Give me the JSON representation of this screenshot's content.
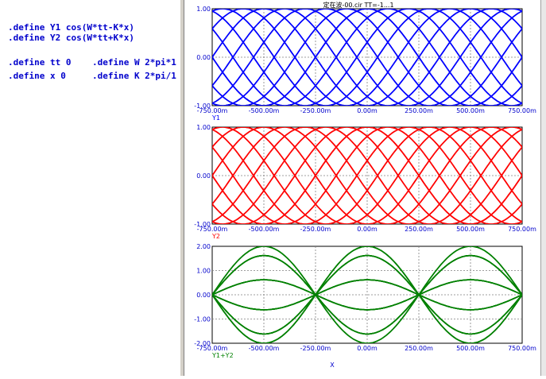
{
  "code": {
    "lines": [
      ".define Y1 cos(W*tt-K*x)",
      ".define Y2 cos(W*tt+K*x)",
      "",
      ".define tt 0    .define W 2*pi*1",
      ".define x 0     .define K 2*pi/1"
    ]
  },
  "plot_title": "定在波-00.cir TT=-1...1",
  "x_axis_label": "X",
  "colors": {
    "y1": "#0000ff",
    "y2": "#ff0000",
    "sum": "#008000",
    "axis_text": "#0000cc"
  },
  "chart_data": [
    {
      "type": "line",
      "trace_label": "Y1",
      "function": "cos(W*tt-K*x)",
      "x_range": [
        -0.75,
        0.75
      ],
      "ylim": [
        -1,
        1
      ],
      "x_tick_labels": [
        "-750.00m",
        "-500.00m",
        "-250.00m",
        "0.00m",
        "250.00m",
        "500.00m",
        "750.00m"
      ],
      "y_tick_labels": [
        "1.00",
        "0.00",
        "-1.00"
      ],
      "parameter_steps": 21,
      "grid": true
    },
    {
      "type": "line",
      "trace_label": "Y2",
      "function": "cos(W*tt+K*x)",
      "x_range": [
        -0.75,
        0.75
      ],
      "ylim": [
        -1,
        1
      ],
      "x_tick_labels": [
        "-750.00m",
        "-500.00m",
        "-250.00m",
        "0.00m",
        "250.00m",
        "500.00m",
        "750.00m"
      ],
      "y_tick_labels": [
        "1.00",
        "0.00",
        "-1.00"
      ],
      "parameter_steps": 21,
      "grid": true
    },
    {
      "type": "line",
      "trace_label": "Y1+Y2",
      "function": "cos(W*tt-K*x)+cos(W*tt+K*x)",
      "x_range": [
        -0.75,
        0.75
      ],
      "ylim": [
        -2,
        2
      ],
      "x_tick_labels": [
        "-750.00m",
        "-500.00m",
        "-250.00m",
        "0.00m",
        "250.00m",
        "500.00m",
        "750.00m"
      ],
      "y_tick_labels": [
        "2.00",
        "1.00",
        "0.00",
        "-1.00",
        "-2.00"
      ],
      "parameter_steps": 21,
      "grid": true
    }
  ]
}
